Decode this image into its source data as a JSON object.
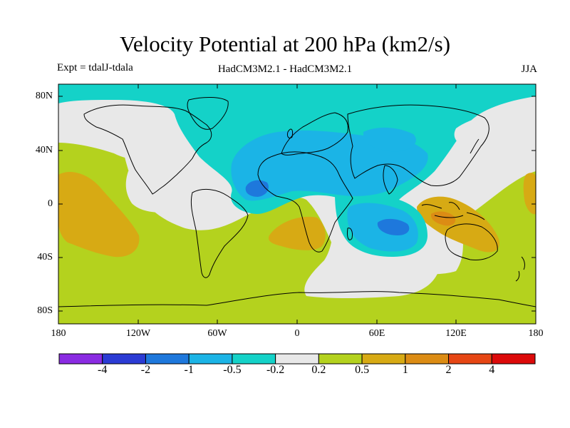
{
  "title": "Velocity Potential at 200 hPa (km2/s)",
  "experiment_label": "Expt = tdalJ-tdala",
  "model_label": "HadCM3M2.1 - HadCM3M2.1",
  "season_label": "JJA",
  "lat_labels": [
    "80N",
    "40N",
    "0",
    "40S",
    "80S"
  ],
  "lon_labels": [
    "180",
    "120W",
    "60W",
    "0",
    "60E",
    "120E",
    "180"
  ],
  "colorbar": {
    "colors": [
      "#8a2be2",
      "#2b3bd4",
      "#1e78dc",
      "#1bb4e6",
      "#14d2c8",
      "#e8e8e8",
      "#b4d21e",
      "#d7aa14",
      "#dc8c14",
      "#e64614",
      "#dc0a0a"
    ],
    "labels": [
      "-4",
      "-2",
      "-1",
      "-0.5",
      "-0.2",
      "0.2",
      "0.5",
      "1",
      "2",
      "4"
    ]
  },
  "map_colors": {
    "ocean_neutral": "#e8e8e8",
    "level_neg_02": "#14d2c8",
    "level_neg_05": "#1bb4e6",
    "level_neg_1": "#1e78dc",
    "level_pos_02": "#b4d21e",
    "level_pos_05": "#d7aa14",
    "level_pos_1": "#dc8c14"
  }
}
